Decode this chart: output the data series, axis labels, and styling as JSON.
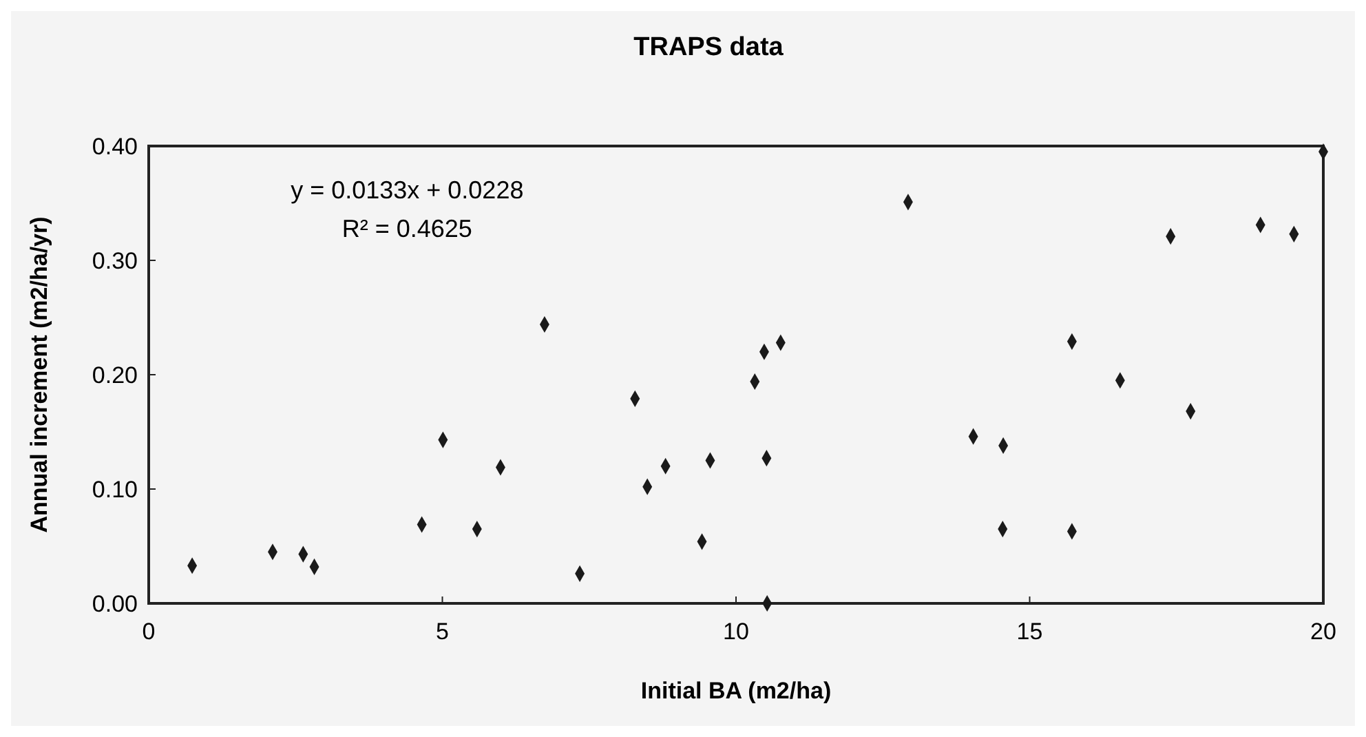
{
  "chart_data": {
    "type": "scatter",
    "title": "TRAPS data",
    "xlabel": "Initial BA (m2/ha)",
    "ylabel": "Annual increment (m2/ha/yr)",
    "annotations": [
      "y = 0.0133x + 0.0228",
      "R² = 0.4625"
    ],
    "xlim": [
      0,
      20
    ],
    "xticks": [
      0,
      5,
      10,
      15,
      20
    ],
    "ylim": [
      0,
      0.4
    ],
    "yticks": [
      {
        "value": 0,
        "label": "0.00"
      },
      {
        "value": 0.1,
        "label": "0.10"
      },
      {
        "value": 0.2,
        "label": "0.20"
      },
      {
        "value": 0.3,
        "label": "0.30"
      },
      {
        "value": 0.4,
        "label": "0.40"
      }
    ],
    "grid": false,
    "marker": "diamond",
    "series": [
      {
        "color": "#1a1a1a",
        "x": [
          0.74,
          2.11,
          2.63,
          2.82,
          6.74,
          5.01,
          5.99,
          4.65,
          5.59,
          7.34,
          12.93,
          8.28,
          10.48,
          10.76,
          10.32,
          8.8,
          9.56,
          10.52,
          8.49,
          9.42,
          14.04,
          14.55,
          14.54,
          10.53,
          20,
          17.4,
          18.93,
          19.5,
          15.72,
          16.54,
          17.74,
          15.72
        ],
        "values": [
          0.033,
          0.045,
          0.043,
          0.032,
          0.244,
          0.143,
          0.119,
          0.069,
          0.065,
          0.026,
          0.351,
          0.179,
          0.22,
          0.228,
          0.194,
          0.12,
          0.125,
          0.127,
          0.102,
          0.054,
          0.146,
          0.138,
          0.065,
          0,
          0.395,
          0.321,
          0.331,
          0.323,
          0.229,
          0.195,
          0.168,
          0.063
        ]
      }
    ]
  }
}
